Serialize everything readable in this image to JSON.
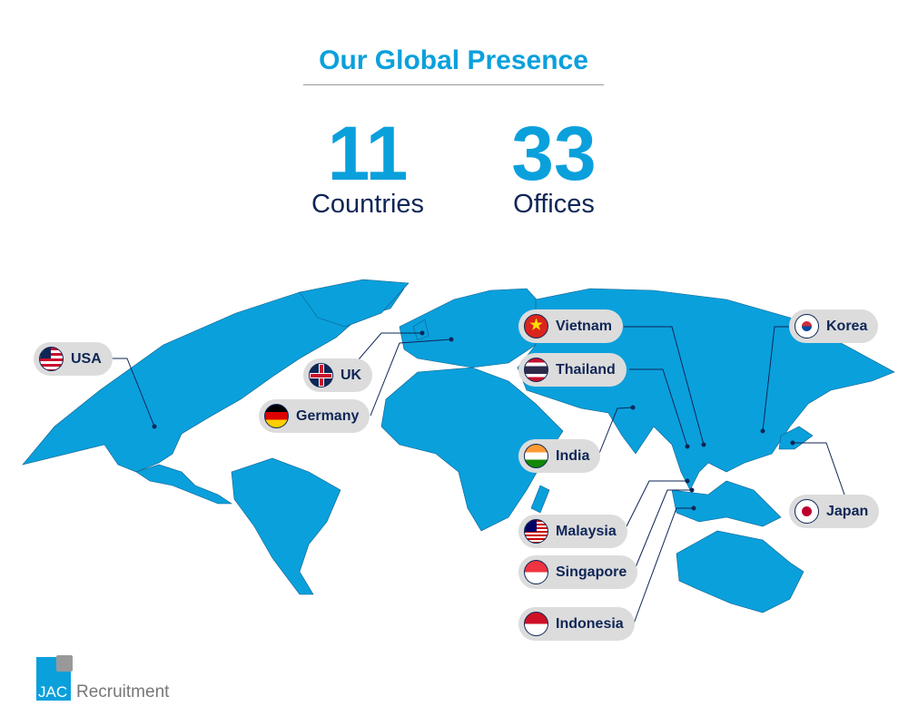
{
  "header": {
    "title": "Our Global Presence"
  },
  "stats": [
    {
      "value": "11",
      "label": "Countries"
    },
    {
      "value": "33",
      "label": "Offices"
    }
  ],
  "colors": {
    "map": "#0aa0dc",
    "text": "#0f2656",
    "pill": "#dcdcdc"
  },
  "locations": [
    {
      "name": "USA",
      "flag": "us-flag-icon"
    },
    {
      "name": "UK",
      "flag": "uk-flag-icon"
    },
    {
      "name": "Germany",
      "flag": "germany-flag-icon"
    },
    {
      "name": "Vietnam",
      "flag": "vietnam-flag-icon"
    },
    {
      "name": "Thailand",
      "flag": "thailand-flag-icon"
    },
    {
      "name": "India",
      "flag": "india-flag-icon"
    },
    {
      "name": "Malaysia",
      "flag": "malaysia-flag-icon"
    },
    {
      "name": "Singapore",
      "flag": "singapore-flag-icon"
    },
    {
      "name": "Indonesia",
      "flag": "indonesia-flag-icon"
    },
    {
      "name": "Korea",
      "flag": "korea-flag-icon"
    },
    {
      "name": "Japan",
      "flag": "japan-flag-icon"
    }
  ],
  "logo": {
    "brand": "JAC",
    "name": "Recruitment"
  }
}
